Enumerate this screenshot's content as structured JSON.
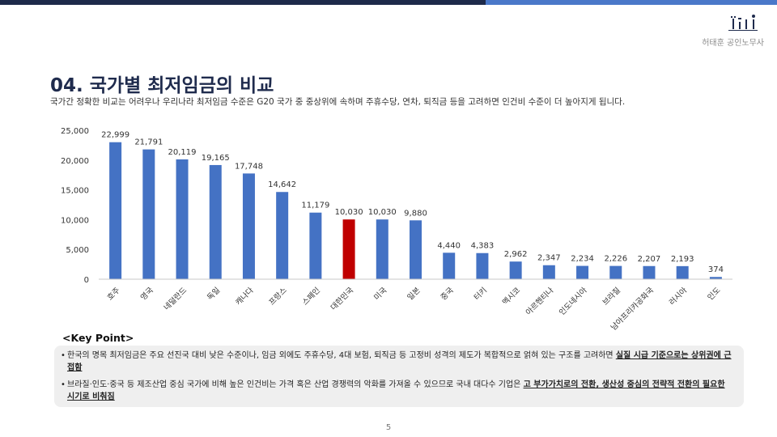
{
  "header": {
    "brand": "허태훈 공인노무사"
  },
  "slide": {
    "title": "04. 국가별 최저임금의 비교",
    "subtitle": "국가간 정확한 비교는 어려우나 우리나라 최저임금 수준은 G20 국가 중 중상위에 속하며 주휴수당, 연차, 퇴직금 등을 고려하면 인건비 수준이 더 높아지게 됩니다."
  },
  "chart_data": {
    "type": "bar",
    "categories": [
      "호주",
      "영국",
      "네덜란드",
      "독일",
      "캐나다",
      "프랑스",
      "스페인",
      "대한민국",
      "미국",
      "일본",
      "중국",
      "터키",
      "멕시코",
      "아르헨티나",
      "인도네시아",
      "브라질",
      "남아프리카공화국",
      "러시아",
      "인도"
    ],
    "values": [
      22999,
      21791,
      20119,
      19165,
      17748,
      14642,
      11179,
      10030,
      10030,
      9880,
      4440,
      4383,
      2962,
      2347,
      2234,
      2226,
      2207,
      2193,
      374
    ],
    "value_labels": [
      "22,999",
      "21,791",
      "20,119",
      "19,165",
      "17,748",
      "14,642",
      "11,179",
      "10,030",
      "10,030",
      "9,880",
      "4,440",
      "4,383",
      "2,962",
      "2,347",
      "2,234",
      "2,226",
      "2,207",
      "2,193",
      "374"
    ],
    "y_ticks": [
      "0",
      "5,000",
      "10,000",
      "15,000",
      "20,000",
      "25,000"
    ],
    "ylim": [
      0,
      25000
    ],
    "grid": false,
    "colors": {
      "default": "#4472c4",
      "highlight": "#c00000"
    },
    "highlight": "대한민국"
  },
  "key_point": {
    "title": "<Key Point>",
    "items": [
      {
        "bullet": "•",
        "text": "한국의 명목 최저임금은 주요 선진국 대비 낮은 수준이나, 임금 외에도 주휴수당, 4대 보험, 퇴직금 등 고정비 성격의 제도가 복합적으로 얽혀 있는 구조를 고려하면 ",
        "highlight": "실질 시급 기준으로는 상위권에 근접함"
      },
      {
        "bullet": "•",
        "text": "브라질·인도·중국 등 제조산업 중심 국가에 비해 높은 인건비는 가격 혹은 산업 경쟁력의 악화를 가져올 수 있으므로 국내 대다수 기업은 ",
        "highlight": "고 부가가치로의 전환, 생산성 중심의 전략적 전환의 필요한 시기로 비춰짐"
      }
    ]
  },
  "footer": {
    "page_number": "5"
  }
}
